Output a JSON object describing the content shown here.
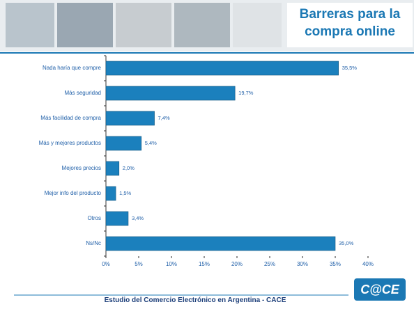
{
  "chart_data": {
    "type": "hbar",
    "title": "Barreras para la compra online",
    "categories": [
      "Nada haría que compre",
      "Más seguridad",
      "Más facilidad de compra",
      "Más y mejores productos",
      "Mejores precios",
      "Mejor info del producto",
      "Otros",
      "Ns/Nc"
    ],
    "values": [
      35.5,
      19.7,
      7.4,
      5.4,
      2.0,
      1.5,
      3.4,
      35.0
    ],
    "value_labels": [
      "35,5%",
      "19,7%",
      "7,4%",
      "5,4%",
      "2,0%",
      "1,5%",
      "3,4%",
      "35,0%"
    ],
    "color": "#1b80bd",
    "xlim": [
      0,
      40
    ],
    "xticks": [
      {
        "value": 0,
        "label": "0%"
      },
      {
        "value": 5,
        "label": "5%"
      },
      {
        "value": 10,
        "label": "10%"
      },
      {
        "value": 15,
        "label": "15%"
      },
      {
        "value": 20,
        "label": "20%"
      },
      {
        "value": 25,
        "label": "25%"
      },
      {
        "value": 30,
        "label": "30%"
      },
      {
        "value": 35,
        "label": "35%"
      },
      {
        "value": 40,
        "label": "40%"
      }
    ],
    "grid": false
  },
  "footer": "Estudio del Comercio Electrónico en Argentina - CACE",
  "logo": "C@CE"
}
